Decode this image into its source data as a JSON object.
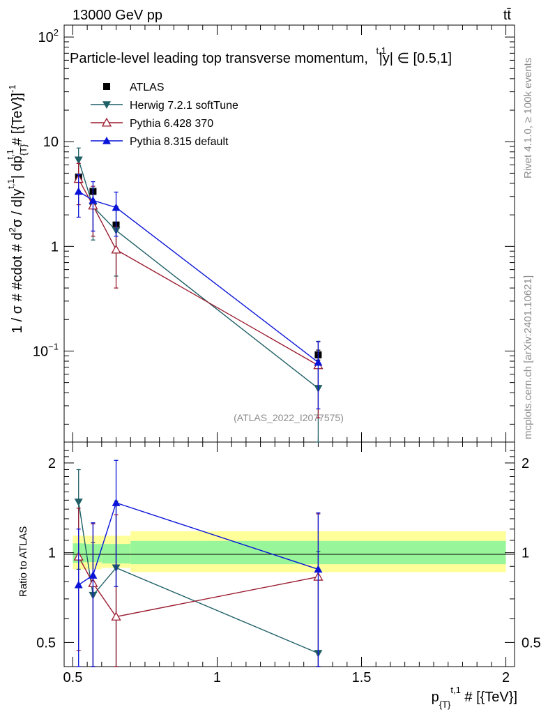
{
  "header": {
    "energy_label": "13000 GeV pp",
    "process_label": "tt̄"
  },
  "side_labels": {
    "rivet": "Rivet 4.1.0, ≥ 100k events",
    "mcplots": "mcplots.cern.ch [arXiv:2401.10621]"
  },
  "colors": {
    "atlas": "#000000",
    "herwig": "#1f5f66",
    "pythia6": "#9a1b2f",
    "pythia8": "#0a14d8",
    "band_inner": "#99f599",
    "band_outer": "#ffff99"
  },
  "chart_data": [
    {
      "type": "line",
      "title": "Particle-level leading top transverse momentum, |y^{t,1}| ∈ [0.5,1]",
      "title_text": "Particle-level leading top transverse momentum,",
      "title_y_sup": "t,1",
      "title_y_base": "y",
      "title_range": "∈ [0.5,1]",
      "ylabel": "1 / σ # #cdot # d²σ / d|y^{t,1}| dp_{T}^{t,1} # [{TeV}]⁻¹",
      "ylabel_parts": {
        "p1": "1 / σ # #cdot # d",
        "p1_sup": "2",
        "p2": "σ / d|y",
        "p2_sup": "t,1",
        "p3": "| dp",
        "p3_sub": "{T}",
        "p3_sup": "t,1",
        "p4": " # [{TeV}]",
        "p4_sup": "-1"
      },
      "yscale": "log",
      "xlim": [
        0.47,
        2.03
      ],
      "ylim": [
        0.0135,
        130
      ],
      "yticks": [
        {
          "value": 100,
          "label": "10",
          "exp": "2"
        },
        {
          "value": 10,
          "label": "10",
          "exp": ""
        },
        {
          "value": 1,
          "label": "1",
          "exp": ""
        },
        {
          "value": 0.1,
          "label": "10",
          "exp": "−1"
        }
      ],
      "watermark": "(ATLAS_2022_I2077575)",
      "legend": [
        "ATLAS",
        "Herwig 7.2.1 softTune",
        "Pythia 6.428 370",
        "Pythia 8.315 default"
      ],
      "series": [
        {
          "name": "ATLAS",
          "marker": "square",
          "x": [
            0.52,
            0.57,
            0.65,
            1.35
          ],
          "y": [
            4.6,
            3.35,
            1.6,
            0.092
          ],
          "err_lo": [
            0.3,
            0.2,
            0.1,
            0.01
          ],
          "err_hi": [
            0.3,
            0.2,
            0.1,
            0.01
          ]
        },
        {
          "name": "Herwig 7.2.1 softTune",
          "marker": "triangle-down",
          "x": [
            0.52,
            0.57,
            0.65,
            1.35
          ],
          "y": [
            6.7,
            2.4,
            1.42,
            0.044
          ],
          "err_lo": [
            1.8,
            1.25,
            0.9,
            0.032
          ],
          "err_hi": [
            2.0,
            1.2,
            1.0,
            0.08
          ]
        },
        {
          "name": "Pythia 6.428 370",
          "marker": "triangle-up-open",
          "x": [
            0.52,
            0.57,
            0.65,
            1.35
          ],
          "y": [
            4.4,
            2.45,
            0.93,
            0.073
          ],
          "err_lo": [
            1.9,
            1.2,
            0.53,
            0.05
          ],
          "err_hi": [
            1.8,
            1.3,
            0.6,
            0.05
          ]
        },
        {
          "name": "Pythia 8.315 default",
          "marker": "triangle-up",
          "x": [
            0.52,
            0.57,
            0.65,
            1.35
          ],
          "y": [
            3.35,
            2.75,
            2.35,
            0.078
          ],
          "err_lo": [
            1.45,
            1.35,
            1.1,
            0.05
          ],
          "err_hi": [
            1.5,
            1.4,
            0.95,
            0.045
          ]
        }
      ]
    },
    {
      "type": "line",
      "title": "",
      "xlabel": "p_{T}^{t,1} # [{TeV}]",
      "xlabel_parts": {
        "p": "p",
        "sub": "{T}",
        "sup": "t,1",
        "rest": " # [{TeV}]"
      },
      "ylabel": "Ratio to ATLAS",
      "yscale": "log",
      "xlim": [
        0.47,
        2.03
      ],
      "ylim": [
        0.415,
        2.35
      ],
      "xticks": [
        {
          "value": 0.5,
          "label": "0.5"
        },
        {
          "value": 1,
          "label": "1"
        },
        {
          "value": 1.5,
          "label": "1.5"
        },
        {
          "value": 2,
          "label": "2"
        }
      ],
      "yticks": [
        {
          "value": 2,
          "label": "2"
        },
        {
          "value": 1,
          "label": "1"
        },
        {
          "value": 0.5,
          "label": "0.5"
        }
      ],
      "bands": [
        {
          "x0": 0.5,
          "x1": 0.54,
          "inner": [
            0.925,
            1.075
          ],
          "outer": [
            0.88,
            1.14
          ]
        },
        {
          "x0": 0.54,
          "x1": 0.6,
          "inner": [
            0.93,
            1.07
          ],
          "outer": [
            0.88,
            1.14
          ]
        },
        {
          "x0": 0.6,
          "x1": 0.7,
          "inner": [
            0.92,
            1.07
          ],
          "outer": [
            0.89,
            1.14
          ]
        },
        {
          "x0": 0.7,
          "x1": 2.0,
          "inner": [
            0.915,
            1.095
          ],
          "outer": [
            0.86,
            1.18
          ]
        }
      ],
      "series": [
        {
          "name": "Herwig 7.2.1 softTune",
          "marker": "triangle-down",
          "x": [
            0.52,
            0.57,
            0.65,
            1.35
          ],
          "y": [
            1.48,
            0.72,
            0.89,
            0.46
          ],
          "err_lo": [
            0.6,
            0.38,
            0.55,
            0.2
          ],
          "err_hi": [
            0.42,
            0.36,
            0.6,
            0.55
          ]
        },
        {
          "name": "Pythia 6.428 370",
          "marker": "triangle-up-open",
          "x": [
            0.52,
            0.57,
            0.65,
            1.35
          ],
          "y": [
            0.97,
            0.79,
            0.61,
            0.83
          ],
          "err_lo": [
            0.5,
            0.41,
            0.33,
            0.45
          ],
          "err_hi": [
            0.44,
            0.46,
            0.73,
            0.52
          ]
        },
        {
          "name": "Pythia 8.315 default",
          "marker": "triangle-up",
          "x": [
            0.52,
            0.57,
            0.65,
            1.35
          ],
          "y": [
            0.78,
            0.84,
            1.47,
            0.88
          ],
          "err_lo": [
            0.42,
            0.44,
            0.7,
            0.52
          ],
          "err_hi": [
            0.42,
            0.42,
            0.57,
            0.48
          ]
        }
      ]
    }
  ]
}
